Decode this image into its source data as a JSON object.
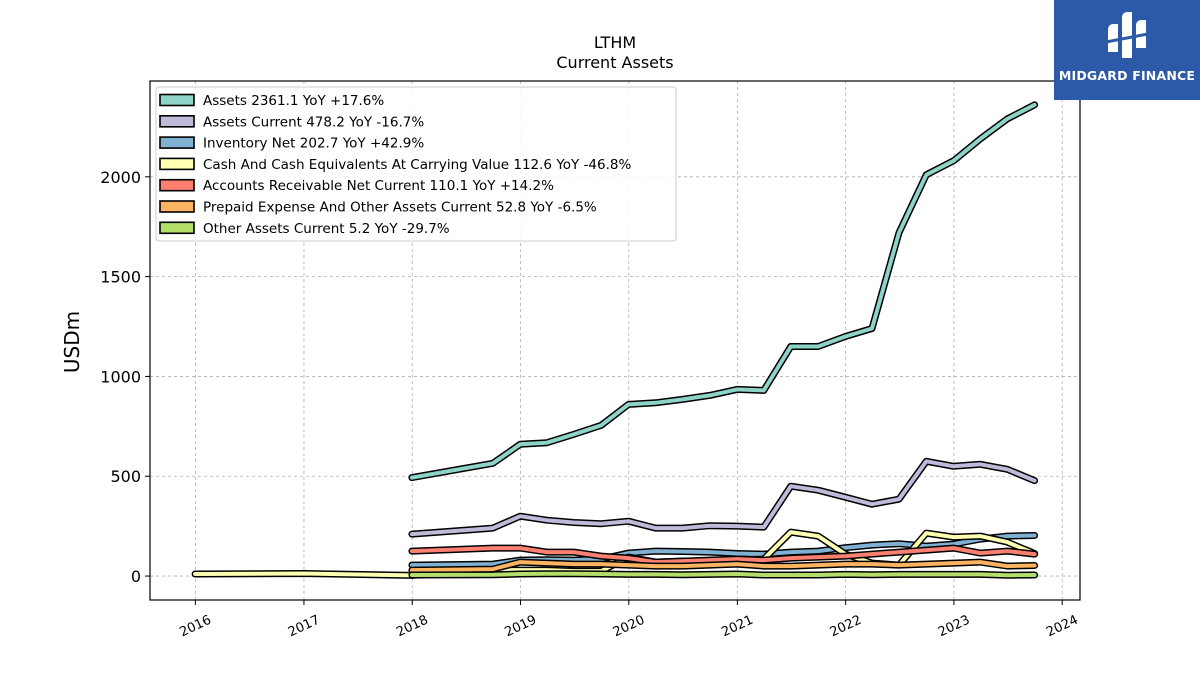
{
  "logo": {
    "text": "MIDGARD FINANCE",
    "icon": "midgard-logo-icon",
    "color": "#2d5aa8"
  },
  "chart_data": {
    "type": "line",
    "title": "LTHM",
    "subtitle": "Current  Assets",
    "ylabel": "USDm",
    "xlabel": "",
    "xlim": [
      "2015-08-01",
      "2024-03-01"
    ],
    "ylim": [
      -120,
      2480
    ],
    "yticks": [
      0,
      500,
      1000,
      1500,
      2000
    ],
    "xticks": [
      "2016",
      "2017",
      "2018",
      "2019",
      "2020",
      "2021",
      "2022",
      "2023",
      "2024"
    ],
    "grid": true,
    "legend_position": "top-left",
    "series": [
      {
        "name": "Assets  2361.1 YoY +17.6%",
        "color": "#8dd3c7",
        "points": [
          [
            "2017-12-31",
            493
          ],
          [
            "2018-09-30",
            565
          ],
          [
            "2018-12-31",
            660
          ],
          [
            "2019-03-31",
            668
          ],
          [
            "2019-06-30",
            710
          ],
          [
            "2019-09-30",
            755
          ],
          [
            "2019-12-31",
            860
          ],
          [
            "2020-03-31",
            868
          ],
          [
            "2020-06-30",
            885
          ],
          [
            "2020-09-30",
            905
          ],
          [
            "2020-12-31",
            935
          ],
          [
            "2021-03-31",
            930
          ],
          [
            "2021-06-30",
            1150
          ],
          [
            "2021-09-30",
            1150
          ],
          [
            "2021-12-31",
            1200
          ],
          [
            "2022-03-31",
            1240
          ],
          [
            "2022-06-30",
            1720
          ],
          [
            "2022-09-30",
            2010
          ],
          [
            "2022-12-31",
            2080
          ],
          [
            "2023-03-31",
            2190
          ],
          [
            "2023-06-30",
            2290
          ],
          [
            "2023-09-30",
            2361
          ]
        ]
      },
      {
        "name": "Assets Current  478.2 YoY -16.7%",
        "color": "#bebada",
        "points": [
          [
            "2017-12-31",
            210
          ],
          [
            "2018-09-30",
            240
          ],
          [
            "2018-12-31",
            300
          ],
          [
            "2019-03-31",
            280
          ],
          [
            "2019-06-30",
            268
          ],
          [
            "2019-09-30",
            262
          ],
          [
            "2019-12-31",
            275
          ],
          [
            "2020-03-31",
            240
          ],
          [
            "2020-06-30",
            240
          ],
          [
            "2020-09-30",
            252
          ],
          [
            "2020-12-31",
            250
          ],
          [
            "2021-03-31",
            245
          ],
          [
            "2021-06-30",
            450
          ],
          [
            "2021-09-30",
            430
          ],
          [
            "2021-12-31",
            395
          ],
          [
            "2022-03-31",
            360
          ],
          [
            "2022-06-30",
            385
          ],
          [
            "2022-09-30",
            575
          ],
          [
            "2022-12-31",
            550
          ],
          [
            "2023-03-31",
            560
          ],
          [
            "2023-06-30",
            535
          ],
          [
            "2023-09-30",
            478
          ]
        ]
      },
      {
        "name": "Inventory Net  202.7 YoY +42.9%",
        "color": "#80b1d3",
        "points": [
          [
            "2017-12-31",
            55
          ],
          [
            "2018-09-30",
            60
          ],
          [
            "2018-12-31",
            80
          ],
          [
            "2019-03-31",
            82
          ],
          [
            "2019-06-30",
            80
          ],
          [
            "2019-09-30",
            85
          ],
          [
            "2019-12-31",
            115
          ],
          [
            "2020-03-31",
            125
          ],
          [
            "2020-06-30",
            123
          ],
          [
            "2020-09-30",
            120
          ],
          [
            "2020-12-31",
            113
          ],
          [
            "2021-03-31",
            110
          ],
          [
            "2021-06-30",
            120
          ],
          [
            "2021-09-30",
            125
          ],
          [
            "2021-12-31",
            142
          ],
          [
            "2022-03-31",
            155
          ],
          [
            "2022-06-30",
            162
          ],
          [
            "2022-09-30",
            150
          ],
          [
            "2022-12-31",
            160
          ],
          [
            "2023-03-31",
            185
          ],
          [
            "2023-06-30",
            200
          ],
          [
            "2023-09-30",
            203
          ]
        ]
      },
      {
        "name": "Cash And Cash Equivalents At Carrying Value  112.6 YoY -46.8%",
        "color": "#ffffb3",
        "points": [
          [
            "2015-12-31",
            10
          ],
          [
            "2016-12-31",
            13
          ],
          [
            "2017-12-31",
            3
          ],
          [
            "2018-09-30",
            30
          ],
          [
            "2018-12-31",
            30
          ],
          [
            "2019-03-31",
            30
          ],
          [
            "2019-06-30",
            25
          ],
          [
            "2019-09-30",
            25
          ],
          [
            "2019-12-31",
            95
          ],
          [
            "2020-03-31",
            70
          ],
          [
            "2020-06-30",
            75
          ],
          [
            "2020-09-30",
            55
          ],
          [
            "2020-12-31",
            80
          ],
          [
            "2021-03-31",
            85
          ],
          [
            "2021-06-30",
            220
          ],
          [
            "2021-09-30",
            200
          ],
          [
            "2021-12-31",
            110
          ],
          [
            "2022-03-31",
            65
          ],
          [
            "2022-06-30",
            55
          ],
          [
            "2022-09-30",
            215
          ],
          [
            "2022-12-31",
            195
          ],
          [
            "2023-03-31",
            200
          ],
          [
            "2023-06-30",
            170
          ],
          [
            "2023-09-30",
            113
          ]
        ]
      },
      {
        "name": "Accounts Receivable Net Current  110.1 YoY +14.2%",
        "color": "#fb8072",
        "points": [
          [
            "2017-12-31",
            125
          ],
          [
            "2018-09-30",
            140
          ],
          [
            "2018-12-31",
            140
          ],
          [
            "2019-03-31",
            120
          ],
          [
            "2019-06-30",
            120
          ],
          [
            "2019-09-30",
            100
          ],
          [
            "2019-12-31",
            90
          ],
          [
            "2020-03-31",
            70
          ],
          [
            "2020-06-30",
            75
          ],
          [
            "2020-09-30",
            80
          ],
          [
            "2020-12-31",
            85
          ],
          [
            "2021-03-31",
            80
          ],
          [
            "2021-06-30",
            90
          ],
          [
            "2021-09-30",
            95
          ],
          [
            "2021-12-31",
            100
          ],
          [
            "2022-03-31",
            110
          ],
          [
            "2022-06-30",
            120
          ],
          [
            "2022-09-30",
            130
          ],
          [
            "2022-12-31",
            140
          ],
          [
            "2023-03-31",
            115
          ],
          [
            "2023-06-30",
            125
          ],
          [
            "2023-09-30",
            110
          ]
        ]
      },
      {
        "name": "Prepaid Expense And Other Assets Current  52.8 YoY -6.5%",
        "color": "#fdb462",
        "points": [
          [
            "2017-12-31",
            30
          ],
          [
            "2018-09-30",
            35
          ],
          [
            "2018-12-31",
            70
          ],
          [
            "2019-03-31",
            65
          ],
          [
            "2019-06-30",
            60
          ],
          [
            "2019-09-30",
            60
          ],
          [
            "2019-12-31",
            55
          ],
          [
            "2020-03-31",
            50
          ],
          [
            "2020-06-30",
            50
          ],
          [
            "2020-09-30",
            55
          ],
          [
            "2020-12-31",
            60
          ],
          [
            "2021-03-31",
            50
          ],
          [
            "2021-06-30",
            50
          ],
          [
            "2021-09-30",
            55
          ],
          [
            "2021-12-31",
            60
          ],
          [
            "2022-03-31",
            60
          ],
          [
            "2022-06-30",
            55
          ],
          [
            "2022-09-30",
            60
          ],
          [
            "2022-12-31",
            65
          ],
          [
            "2023-03-31",
            70
          ],
          [
            "2023-06-30",
            50
          ],
          [
            "2023-09-30",
            53
          ]
        ]
      },
      {
        "name": "Other Assets Current  5.2 YoY -29.7%",
        "color": "#b3de69",
        "points": [
          [
            "2017-12-31",
            5
          ],
          [
            "2018-09-30",
            6
          ],
          [
            "2018-12-31",
            10
          ],
          [
            "2019-03-31",
            12
          ],
          [
            "2019-06-30",
            12
          ],
          [
            "2019-09-30",
            10
          ],
          [
            "2019-12-31",
            8
          ],
          [
            "2020-03-31",
            8
          ],
          [
            "2020-06-30",
            6
          ],
          [
            "2020-09-30",
            8
          ],
          [
            "2020-12-31",
            10
          ],
          [
            "2021-03-31",
            5
          ],
          [
            "2021-06-30",
            5
          ],
          [
            "2021-09-30",
            5
          ],
          [
            "2021-12-31",
            8
          ],
          [
            "2022-03-31",
            6
          ],
          [
            "2022-06-30",
            8
          ],
          [
            "2022-09-30",
            8
          ],
          [
            "2022-12-31",
            8
          ],
          [
            "2023-03-31",
            8
          ],
          [
            "2023-06-30",
            4
          ],
          [
            "2023-09-30",
            5
          ]
        ]
      }
    ]
  }
}
